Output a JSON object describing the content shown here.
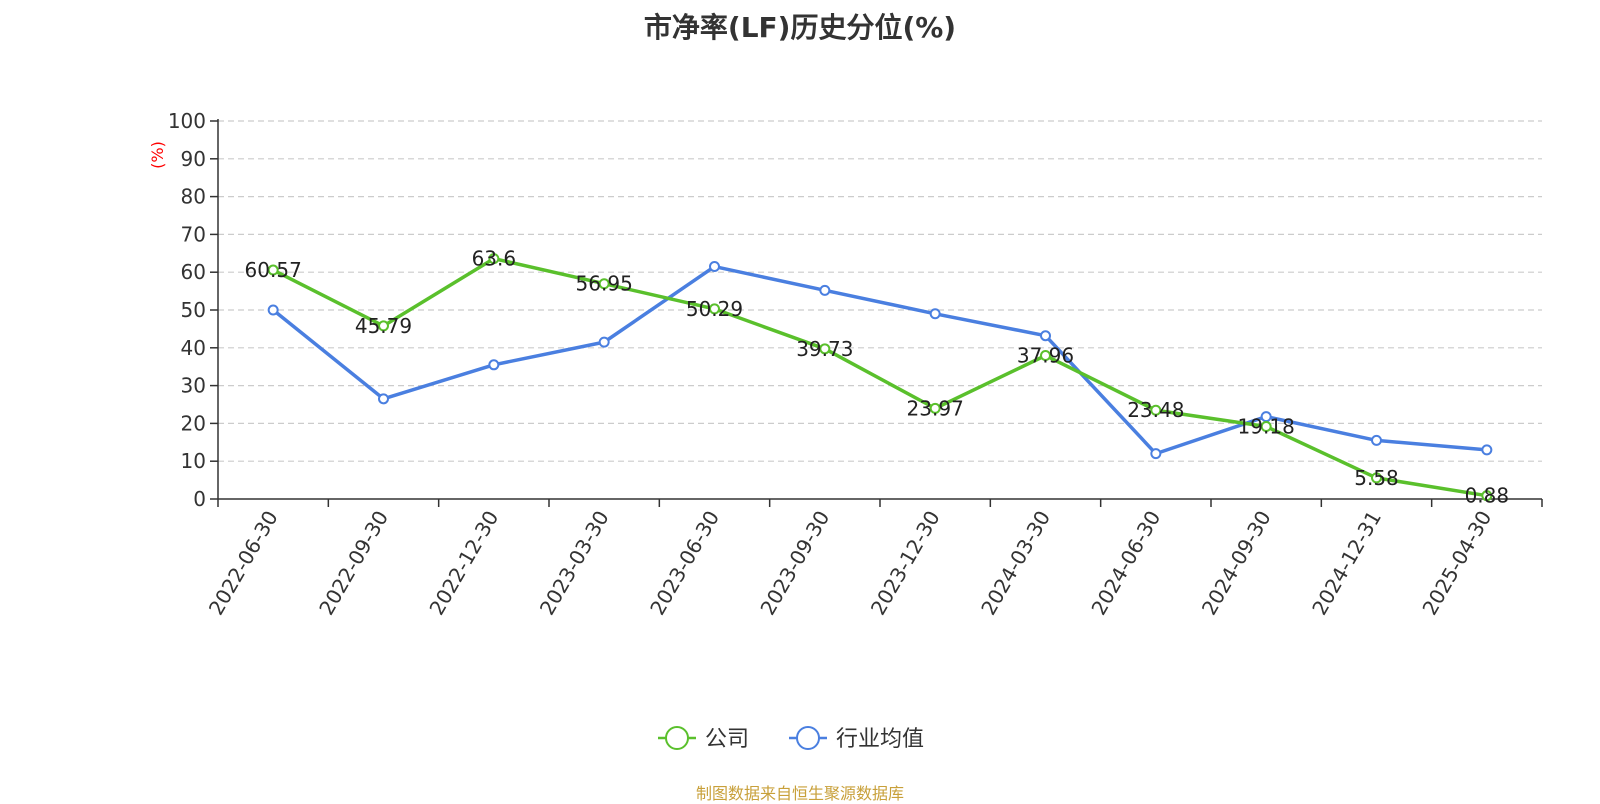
{
  "title": "市净率(LF)历史分位(%)",
  "source": "制图数据来自恒生聚源数据库",
  "chart_data": {
    "type": "line",
    "title": "市净率(LF)历史分位(%)",
    "ylabel": "(%)",
    "xlabel": "",
    "ylim": [
      0,
      100
    ],
    "yticks": [
      0,
      10,
      20,
      30,
      40,
      50,
      60,
      70,
      80,
      90,
      100
    ],
    "grid": true,
    "legend_position": "bottom-center",
    "categories": [
      "2022-06-30",
      "2022-09-30",
      "2022-12-30",
      "2023-03-30",
      "2023-06-30",
      "2023-09-30",
      "2023-12-30",
      "2024-03-30",
      "2024-06-30",
      "2024-09-30",
      "2024-12-31",
      "2025-04-30"
    ],
    "series": [
      {
        "name": "公司",
        "color": "#5ac02c",
        "values": [
          60.57,
          45.79,
          63.6,
          56.95,
          50.29,
          39.73,
          23.97,
          37.96,
          23.48,
          19.18,
          5.58,
          0.88
        ],
        "labels": [
          "60.57",
          "45.79",
          "63.6",
          "56.95",
          "50.29",
          "39.73",
          "23.97",
          "37.96",
          "23.48",
          "19.18",
          "5.58",
          "0.88"
        ]
      },
      {
        "name": "行业均值",
        "color": "#4a7fe0",
        "values": [
          50,
          26.5,
          35.5,
          41.5,
          61.5,
          55.2,
          49,
          43.2,
          12,
          21.8,
          15.5,
          13
        ]
      }
    ]
  }
}
